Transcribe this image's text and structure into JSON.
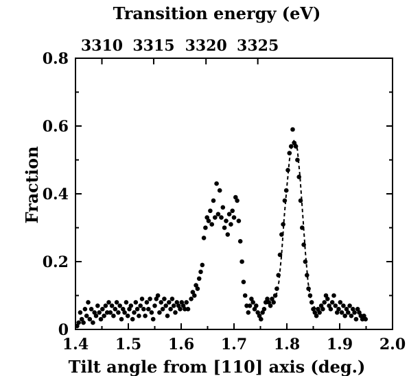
{
  "chart_data": {
    "type": "scatter",
    "title": "",
    "xlabel": "Tilt angle from [110] axis (deg.)",
    "ylabel": "Fraction",
    "top_xlabel": "Transition energy (eV)",
    "xlim": [
      1.4,
      2.0
    ],
    "ylim": [
      0,
      0.8
    ],
    "x_ticks": [
      "1.4",
      "1.5",
      "1.6",
      "1.7",
      "1.8",
      "1.9",
      "2.0"
    ],
    "y_ticks": [
      "0",
      "0.2",
      "0.4",
      "0.6",
      "0.8"
    ],
    "top_ticks": [
      {
        "label": "3310",
        "x": 1.45
      },
      {
        "label": "3315",
        "x": 1.548
      },
      {
        "label": "3320",
        "x": 1.647
      },
      {
        "label": "3325",
        "x": 1.745
      }
    ],
    "grid": false,
    "legend": "none",
    "series": [
      {
        "marker": "filled-circle",
        "color": "#000000",
        "points": [
          [
            1.403,
            0.01
          ],
          [
            1.406,
            0.02
          ],
          [
            1.409,
            0.05
          ],
          [
            1.412,
            0.03
          ],
          [
            1.415,
            0.02
          ],
          [
            1.418,
            0.06
          ],
          [
            1.421,
            0.04
          ],
          [
            1.424,
            0.08
          ],
          [
            1.427,
            0.03
          ],
          [
            1.43,
            0.06
          ],
          [
            1.433,
            0.02
          ],
          [
            1.436,
            0.05
          ],
          [
            1.439,
            0.04
          ],
          [
            1.442,
            0.07
          ],
          [
            1.445,
            0.05
          ],
          [
            1.448,
            0.03
          ],
          [
            1.451,
            0.06
          ],
          [
            1.454,
            0.04
          ],
          [
            1.457,
            0.07
          ],
          [
            1.46,
            0.05
          ],
          [
            1.463,
            0.08
          ],
          [
            1.466,
            0.05
          ],
          [
            1.469,
            0.07
          ],
          [
            1.472,
            0.04
          ],
          [
            1.475,
            0.06
          ],
          [
            1.478,
            0.08
          ],
          [
            1.481,
            0.05
          ],
          [
            1.484,
            0.07
          ],
          [
            1.487,
            0.03
          ],
          [
            1.49,
            0.06
          ],
          [
            1.493,
            0.05
          ],
          [
            1.496,
            0.08
          ],
          [
            1.499,
            0.04
          ],
          [
            1.502,
            0.06
          ],
          [
            1.505,
            0.07
          ],
          [
            1.508,
            0.03
          ],
          [
            1.511,
            0.05
          ],
          [
            1.514,
            0.08
          ],
          [
            1.517,
            0.06
          ],
          [
            1.52,
            0.04
          ],
          [
            1.523,
            0.07
          ],
          [
            1.526,
            0.09
          ],
          [
            1.529,
            0.06
          ],
          [
            1.532,
            0.04
          ],
          [
            1.535,
            0.08
          ],
          [
            1.538,
            0.06
          ],
          [
            1.541,
            0.09
          ],
          [
            1.544,
            0.05
          ],
          [
            1.547,
            0.03
          ],
          [
            1.55,
            0.07
          ],
          [
            1.553,
            0.09
          ],
          [
            1.556,
            0.1
          ],
          [
            1.559,
            0.05
          ],
          [
            1.562,
            0.08
          ],
          [
            1.565,
            0.06
          ],
          [
            1.568,
            0.09
          ],
          [
            1.571,
            0.07
          ],
          [
            1.574,
            0.04
          ],
          [
            1.577,
            0.08
          ],
          [
            1.58,
            0.06
          ],
          [
            1.583,
            0.09
          ],
          [
            1.586,
            0.07
          ],
          [
            1.589,
            0.05
          ],
          [
            1.592,
            0.08
          ],
          [
            1.595,
            0.07
          ],
          [
            1.598,
            0.06
          ],
          [
            1.601,
            0.08
          ],
          [
            1.604,
            0.07
          ],
          [
            1.607,
            0.06
          ],
          [
            1.61,
            0.08
          ],
          [
            1.613,
            0.06
          ],
          [
            1.619,
            0.09
          ],
          [
            1.622,
            0.11
          ],
          [
            1.625,
            0.1
          ],
          [
            1.628,
            0.13
          ],
          [
            1.631,
            0.12
          ],
          [
            1.634,
            0.15
          ],
          [
            1.637,
            0.17
          ],
          [
            1.64,
            0.19
          ],
          [
            1.643,
            0.27
          ],
          [
            1.646,
            0.3
          ],
          [
            1.649,
            0.33
          ],
          [
            1.652,
            0.32
          ],
          [
            1.655,
            0.35
          ],
          [
            1.658,
            0.31
          ],
          [
            1.661,
            0.38
          ],
          [
            1.664,
            0.33
          ],
          [
            1.667,
            0.43
          ],
          [
            1.67,
            0.34
          ],
          [
            1.673,
            0.41
          ],
          [
            1.676,
            0.33
          ],
          [
            1.679,
            0.36
          ],
          [
            1.682,
            0.3
          ],
          [
            1.685,
            0.32
          ],
          [
            1.688,
            0.28
          ],
          [
            1.691,
            0.34
          ],
          [
            1.694,
            0.31
          ],
          [
            1.697,
            0.35
          ],
          [
            1.7,
            0.33
          ],
          [
            1.703,
            0.39
          ],
          [
            1.706,
            0.38
          ],
          [
            1.709,
            0.32
          ],
          [
            1.712,
            0.26
          ],
          [
            1.715,
            0.2
          ],
          [
            1.718,
            0.14
          ],
          [
            1.721,
            0.1
          ],
          [
            1.724,
            0.07
          ],
          [
            1.727,
            0.05
          ],
          [
            1.73,
            0.07
          ],
          [
            1.733,
            0.09
          ],
          [
            1.736,
            0.08
          ],
          [
            1.739,
            0.06
          ],
          [
            1.742,
            0.07
          ],
          [
            1.745,
            0.05
          ],
          [
            1.748,
            0.04
          ],
          [
            1.751,
            0.03
          ],
          [
            1.754,
            0.05
          ],
          [
            1.757,
            0.06
          ],
          [
            1.76,
            0.08
          ],
          [
            1.763,
            0.09
          ],
          [
            1.766,
            0.08
          ],
          [
            1.769,
            0.07
          ],
          [
            1.772,
            0.09
          ],
          [
            1.775,
            0.08
          ],
          [
            1.778,
            0.1
          ],
          [
            1.781,
            0.12
          ],
          [
            1.784,
            0.16
          ],
          [
            1.787,
            0.22
          ],
          [
            1.79,
            0.28
          ],
          [
            1.793,
            0.31
          ],
          [
            1.796,
            0.38
          ],
          [
            1.799,
            0.41
          ],
          [
            1.802,
            0.47
          ],
          [
            1.805,
            0.52
          ],
          [
            1.808,
            0.54
          ],
          [
            1.811,
            0.59
          ],
          [
            1.814,
            0.55
          ],
          [
            1.817,
            0.54
          ],
          [
            1.82,
            0.5
          ],
          [
            1.823,
            0.45
          ],
          [
            1.826,
            0.38
          ],
          [
            1.829,
            0.3
          ],
          [
            1.832,
            0.25
          ],
          [
            1.835,
            0.2
          ],
          [
            1.838,
            0.16
          ],
          [
            1.841,
            0.12
          ],
          [
            1.844,
            0.1
          ],
          [
            1.847,
            0.08
          ],
          [
            1.85,
            0.06
          ],
          [
            1.853,
            0.05
          ],
          [
            1.856,
            0.04
          ],
          [
            1.859,
            0.06
          ],
          [
            1.862,
            0.05
          ],
          [
            1.865,
            0.07
          ],
          [
            1.868,
            0.06
          ],
          [
            1.871,
            0.08
          ],
          [
            1.874,
            0.1
          ],
          [
            1.877,
            0.09
          ],
          [
            1.88,
            0.07
          ],
          [
            1.883,
            0.06
          ],
          [
            1.886,
            0.08
          ],
          [
            1.889,
            0.1
          ],
          [
            1.892,
            0.07
          ],
          [
            1.895,
            0.05
          ],
          [
            1.898,
            0.06
          ],
          [
            1.901,
            0.08
          ],
          [
            1.904,
            0.05
          ],
          [
            1.907,
            0.07
          ],
          [
            1.91,
            0.04
          ],
          [
            1.913,
            0.06
          ],
          [
            1.916,
            0.05
          ],
          [
            1.919,
            0.07
          ],
          [
            1.922,
            0.04
          ],
          [
            1.925,
            0.06
          ],
          [
            1.928,
            0.05
          ],
          [
            1.931,
            0.03
          ],
          [
            1.934,
            0.06
          ],
          [
            1.937,
            0.05
          ],
          [
            1.94,
            0.04
          ],
          [
            1.943,
            0.03
          ],
          [
            1.946,
            0.04
          ],
          [
            1.949,
            0.03
          ]
        ]
      },
      {
        "type": "line",
        "style": "dashed",
        "color": "#000000",
        "points": [
          [
            1.76,
            0.08
          ],
          [
            1.77,
            0.085
          ],
          [
            1.78,
            0.1
          ],
          [
            1.785,
            0.14
          ],
          [
            1.79,
            0.22
          ],
          [
            1.795,
            0.33
          ],
          [
            1.8,
            0.42
          ],
          [
            1.805,
            0.5
          ],
          [
            1.81,
            0.55
          ],
          [
            1.815,
            0.56
          ],
          [
            1.82,
            0.53
          ],
          [
            1.825,
            0.45
          ],
          [
            1.83,
            0.34
          ],
          [
            1.835,
            0.23
          ],
          [
            1.84,
            0.14
          ],
          [
            1.845,
            0.09
          ],
          [
            1.85,
            0.07
          ],
          [
            1.86,
            0.05
          ]
        ]
      }
    ]
  }
}
